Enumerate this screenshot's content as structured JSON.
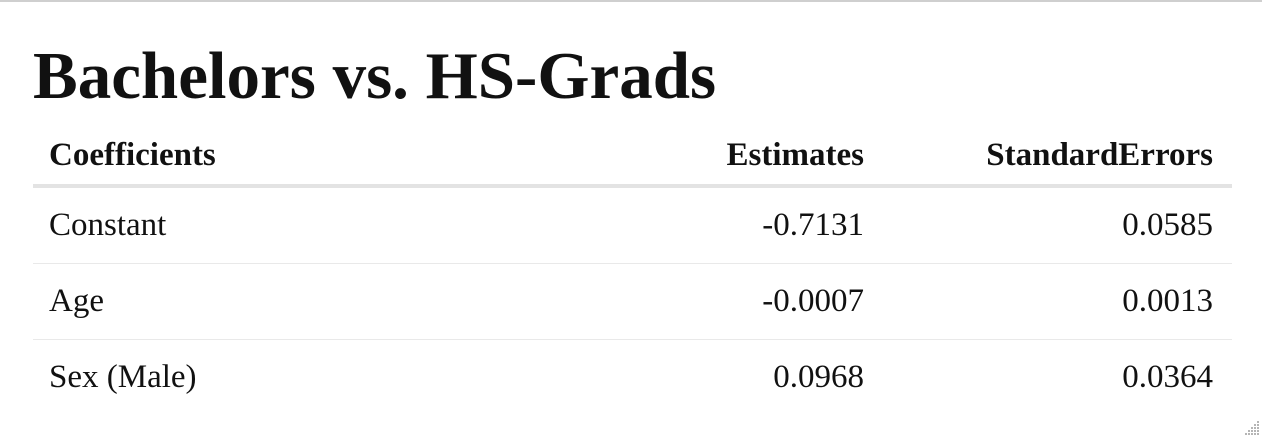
{
  "title": "Bachelors vs. HS-Grads",
  "table": {
    "headers": [
      "Coefficients",
      "Estimates",
      "StandardErrors"
    ],
    "rows": [
      [
        "Constant",
        "-0.7131",
        "0.0585"
      ],
      [
        "Age",
        "-0.0007",
        "0.0013"
      ],
      [
        "Sex (Male)",
        "0.0968",
        "0.0364"
      ]
    ]
  },
  "icons": {
    "resize_grip": "resize-grip-icon"
  }
}
